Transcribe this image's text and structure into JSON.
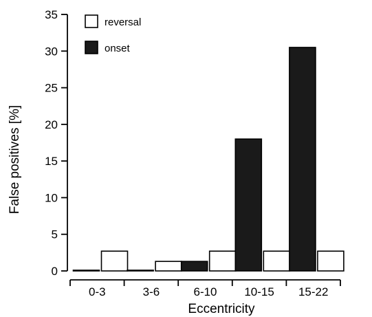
{
  "chart_data": {
    "type": "bar",
    "xlabel": "Eccentricity",
    "ylabel": "False positives [%]",
    "categories": [
      "0-3",
      "3-6",
      "6-10",
      "10-15",
      "15-22"
    ],
    "series": [
      {
        "name": "onset",
        "values": [
          0.1,
          0.1,
          1.3,
          18.0,
          30.5
        ],
        "color": "#1a1a1a"
      },
      {
        "name": "reversal",
        "values": [
          2.7,
          1.3,
          2.7,
          2.7,
          2.7
        ],
        "color": "#ffffff"
      }
    ],
    "ylim": [
      0,
      35
    ],
    "yticks": [
      0,
      5,
      10,
      15,
      20,
      25,
      30,
      35
    ],
    "grid": false,
    "legend_position": "top-left"
  },
  "legend": [
    {
      "label": "reversal",
      "color": "#ffffff"
    },
    {
      "label": "onset",
      "color": "#1a1a1a"
    }
  ]
}
